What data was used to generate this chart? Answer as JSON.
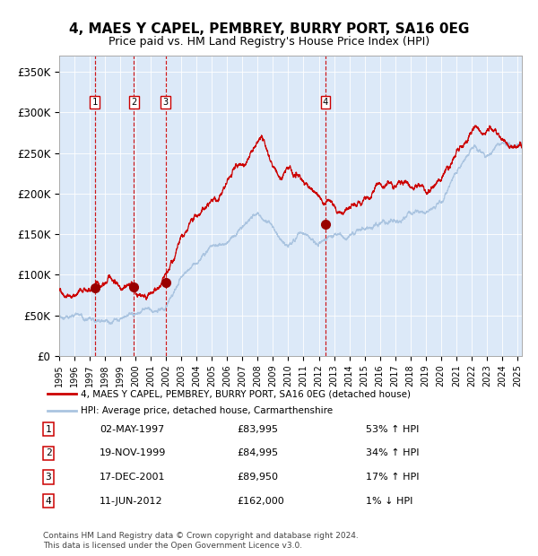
{
  "title": "4, MAES Y CAPEL, PEMBREY, BURRY PORT, SA16 0EG",
  "subtitle": "Price paid vs. HM Land Registry's House Price Index (HPI)",
  "xlim": [
    1995.0,
    2025.3
  ],
  "ylim": [
    0,
    370000
  ],
  "yticks": [
    0,
    50000,
    100000,
    150000,
    200000,
    250000,
    300000,
    350000
  ],
  "ytick_labels": [
    "£0",
    "£50K",
    "£100K",
    "£150K",
    "£200K",
    "£250K",
    "£300K",
    "£350K"
  ],
  "xticks": [
    1995,
    1996,
    1997,
    1998,
    1999,
    2000,
    2001,
    2002,
    2003,
    2004,
    2005,
    2006,
    2007,
    2008,
    2009,
    2010,
    2011,
    2012,
    2013,
    2014,
    2015,
    2016,
    2017,
    2018,
    2019,
    2020,
    2021,
    2022,
    2023,
    2024,
    2025
  ],
  "background_color": "#dce9f8",
  "red_line_color": "#cc0000",
  "blue_line_color": "#aac4e0",
  "sale_marker_color": "#990000",
  "sale_marker_size": 7,
  "vline_color": "#cc0000",
  "purchases": [
    {
      "label": "1",
      "date_year": 1997.33,
      "price": 83995,
      "hpi_pct": "53% ↑ HPI",
      "date_str": "02-MAY-1997"
    },
    {
      "label": "2",
      "date_year": 1999.88,
      "price": 84995,
      "hpi_pct": "34% ↑ HPI",
      "date_str": "19-NOV-1999"
    },
    {
      "label": "3",
      "date_year": 2001.96,
      "price": 89950,
      "hpi_pct": "17% ↑ HPI",
      "date_str": "17-DEC-2001"
    },
    {
      "label": "4",
      "date_year": 2012.44,
      "price": 162000,
      "hpi_pct": "1% ↓ HPI",
      "date_str": "11-JUN-2012"
    }
  ],
  "footer_line1": "Contains HM Land Registry data © Crown copyright and database right 2024.",
  "footer_line2": "This data is licensed under the Open Government Licence v3.0.",
  "legend_line1": "4, MAES Y CAPEL, PEMBREY, BURRY PORT, SA16 0EG (detached house)",
  "legend_line2": "HPI: Average price, detached house, Carmarthenshire"
}
